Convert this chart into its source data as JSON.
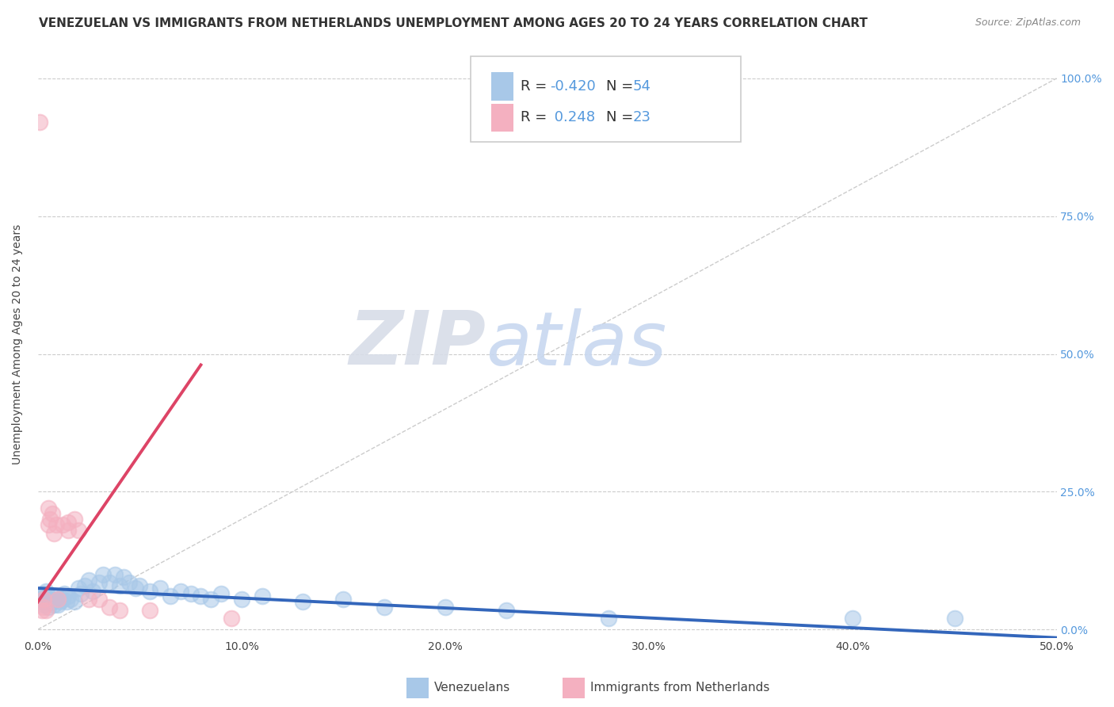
{
  "title": "VENEZUELAN VS IMMIGRANTS FROM NETHERLANDS UNEMPLOYMENT AMONG AGES 20 TO 24 YEARS CORRELATION CHART",
  "source": "Source: ZipAtlas.com",
  "ylabel": "Unemployment Among Ages 20 to 24 years",
  "xlim": [
    0.0,
    0.5
  ],
  "ylim": [
    -0.015,
    1.05
  ],
  "xticks": [
    0.0,
    0.1,
    0.2,
    0.3,
    0.4,
    0.5
  ],
  "xticklabels": [
    "0.0%",
    "10.0%",
    "20.0%",
    "30.0%",
    "40.0%",
    "50.0%"
  ],
  "ytick_positions": [
    0.0,
    0.25,
    0.5,
    0.75,
    1.0
  ],
  "yticklabels_right": [
    "0.0%",
    "25.0%",
    "50.0%",
    "75.0%",
    "100.0%"
  ],
  "blue_color": "#a8c8e8",
  "pink_color": "#f4b0c0",
  "blue_line_color": "#3366bb",
  "pink_line_color": "#dd4466",
  "diag_line_color": "#cccccc",
  "trend_line_blue": {
    "x0": 0.0,
    "y0": 0.075,
    "x1": 0.5,
    "y1": -0.015
  },
  "trend_line_pink": {
    "x0": 0.0,
    "y0": 0.05,
    "x1": 0.08,
    "y1": 0.48
  },
  "diag_line": {
    "x0": 0.0,
    "y0": 0.0,
    "x1": 0.5,
    "y1": 1.0
  },
  "R_blue": -0.42,
  "N_blue": 54,
  "R_pink": 0.248,
  "N_pink": 23,
  "legend_label_blue": "Venezuelans",
  "legend_label_pink": "Immigrants from Netherlands",
  "watermark_zip": "ZIP",
  "watermark_atlas": "atlas",
  "background_color": "#ffffff",
  "grid_color": "#cccccc",
  "title_fontsize": 11,
  "axis_label_fontsize": 10,
  "tick_fontsize": 10,
  "blue_scatter_x": [
    0.001,
    0.002,
    0.002,
    0.003,
    0.003,
    0.004,
    0.004,
    0.005,
    0.005,
    0.006,
    0.007,
    0.008,
    0.009,
    0.01,
    0.01,
    0.011,
    0.012,
    0.013,
    0.014,
    0.015,
    0.016,
    0.018,
    0.02,
    0.021,
    0.023,
    0.025,
    0.027,
    0.03,
    0.032,
    0.035,
    0.038,
    0.04,
    0.042,
    0.045,
    0.048,
    0.05,
    0.055,
    0.06,
    0.065,
    0.07,
    0.075,
    0.08,
    0.085,
    0.09,
    0.1,
    0.11,
    0.13,
    0.15,
    0.17,
    0.2,
    0.23,
    0.28,
    0.4,
    0.45
  ],
  "blue_scatter_y": [
    0.055,
    0.06,
    0.05,
    0.065,
    0.045,
    0.07,
    0.05,
    0.06,
    0.04,
    0.055,
    0.05,
    0.045,
    0.06,
    0.055,
    0.045,
    0.05,
    0.055,
    0.065,
    0.05,
    0.06,
    0.055,
    0.05,
    0.075,
    0.065,
    0.08,
    0.09,
    0.07,
    0.085,
    0.1,
    0.085,
    0.1,
    0.08,
    0.095,
    0.085,
    0.075,
    0.08,
    0.07,
    0.075,
    0.06,
    0.07,
    0.065,
    0.06,
    0.055,
    0.065,
    0.055,
    0.06,
    0.05,
    0.055,
    0.04,
    0.04,
    0.035,
    0.02,
    0.02,
    0.02
  ],
  "pink_scatter_x": [
    0.001,
    0.002,
    0.003,
    0.003,
    0.004,
    0.005,
    0.005,
    0.006,
    0.007,
    0.008,
    0.009,
    0.01,
    0.012,
    0.015,
    0.015,
    0.018,
    0.02,
    0.025,
    0.03,
    0.035,
    0.04,
    0.055,
    0.095
  ],
  "pink_scatter_y": [
    0.92,
    0.035,
    0.055,
    0.04,
    0.035,
    0.22,
    0.19,
    0.2,
    0.21,
    0.175,
    0.19,
    0.055,
    0.19,
    0.195,
    0.18,
    0.2,
    0.18,
    0.055,
    0.055,
    0.04,
    0.035,
    0.035,
    0.02
  ]
}
